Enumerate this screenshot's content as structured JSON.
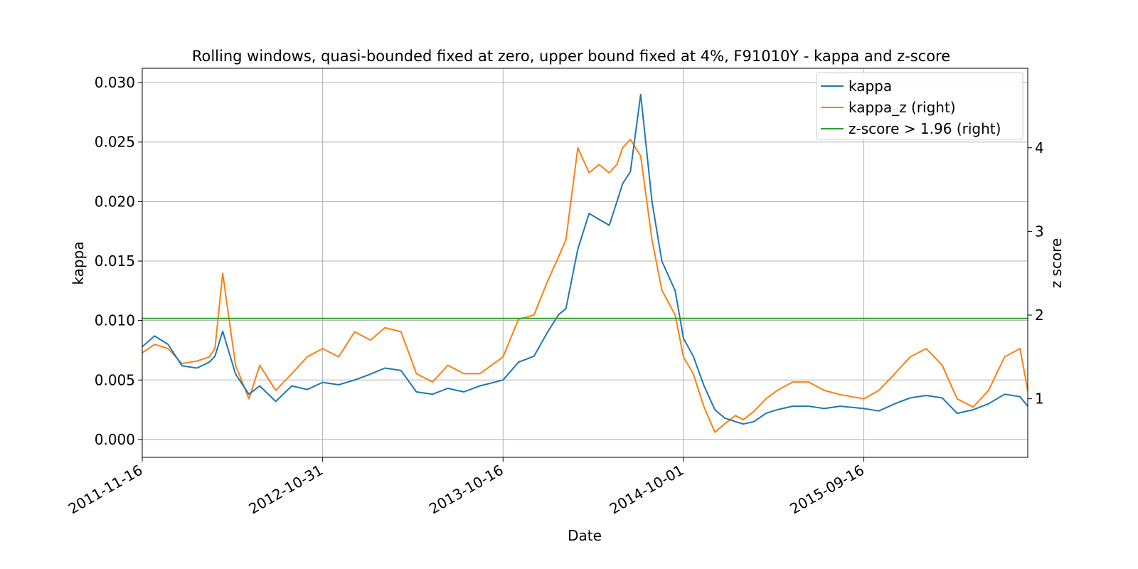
{
  "chart_data": {
    "type": "line",
    "title": "Rolling windows, quasi-bounded fixed at zero, upper bound fixed at 4%, F91010Y - kappa and z-score",
    "xlabel": "Date",
    "ylabel": "kappa",
    "ylabel_right": "z score",
    "x_ticks": [
      "2011-11-16",
      "2012-10-31",
      "2013-10-16",
      "2014-10-01",
      "2015-09-16"
    ],
    "xlim": [
      "2011-11-16",
      "2016-07-30"
    ],
    "y_ticks": [
      "0.000",
      "0.005",
      "0.010",
      "0.015",
      "0.020",
      "0.025",
      "0.030"
    ],
    "ylim": [
      -0.0015,
      0.0312
    ],
    "y2_ticks": [
      "1",
      "2",
      "3",
      "4"
    ],
    "y2lim": [
      0.3,
      4.95
    ],
    "grid": true,
    "legend": {
      "position": "top-right",
      "entries": [
        {
          "label": "kappa",
          "color": "#1f77b4"
        },
        {
          "label": "kappa_z (right)",
          "color": "#ff7f0e"
        },
        {
          "label": "z-score > 1.96 (right)",
          "color": "#2ca02c"
        }
      ]
    },
    "series": [
      {
        "name": "kappa",
        "axis": "left",
        "color": "#1f77b4",
        "x": [
          "2011-11-16",
          "2011-12-10",
          "2012-01-05",
          "2012-02-01",
          "2012-03-01",
          "2012-03-25",
          "2012-04-05",
          "2012-04-20",
          "2012-05-15",
          "2012-06-10",
          "2012-07-01",
          "2012-08-01",
          "2012-09-01",
          "2012-10-01",
          "2012-10-31",
          "2012-12-01",
          "2013-01-01",
          "2013-02-01",
          "2013-03-01",
          "2013-04-01",
          "2013-05-01",
          "2013-06-01",
          "2013-07-01",
          "2013-08-01",
          "2013-09-01",
          "2013-10-16",
          "2013-11-15",
          "2013-12-15",
          "2014-01-10",
          "2014-02-01",
          "2014-02-15",
          "2014-03-10",
          "2014-04-01",
          "2014-04-20",
          "2014-05-10",
          "2014-05-25",
          "2014-06-05",
          "2014-06-20",
          "2014-07-10",
          "2014-08-01",
          "2014-08-20",
          "2014-09-15",
          "2014-10-01",
          "2014-10-20",
          "2014-11-10",
          "2014-12-01",
          "2014-12-20",
          "2015-01-10",
          "2015-01-25",
          "2015-02-15",
          "2015-03-10",
          "2015-04-01",
          "2015-05-01",
          "2015-06-01",
          "2015-07-01",
          "2015-08-01",
          "2015-09-16",
          "2015-10-15",
          "2015-11-15",
          "2015-12-15",
          "2016-01-15",
          "2016-02-15",
          "2016-03-15",
          "2016-04-15",
          "2016-05-15",
          "2016-06-15",
          "2016-07-15",
          "2016-07-30"
        ],
        "values": [
          0.0078,
          0.0087,
          0.008,
          0.0062,
          0.006,
          0.0065,
          0.007,
          0.0091,
          0.0055,
          0.0038,
          0.0045,
          0.0032,
          0.0045,
          0.0042,
          0.0048,
          0.0046,
          0.005,
          0.0055,
          0.006,
          0.0058,
          0.004,
          0.0038,
          0.0043,
          0.004,
          0.0045,
          0.005,
          0.0065,
          0.007,
          0.009,
          0.0105,
          0.011,
          0.016,
          0.019,
          0.0185,
          0.018,
          0.02,
          0.0215,
          0.0225,
          0.029,
          0.02,
          0.015,
          0.0125,
          0.0085,
          0.007,
          0.0045,
          0.0025,
          0.0018,
          0.0015,
          0.0013,
          0.0015,
          0.0022,
          0.0025,
          0.0028,
          0.0028,
          0.0026,
          0.0028,
          0.0026,
          0.0024,
          0.003,
          0.0035,
          0.0037,
          0.0035,
          0.0022,
          0.0025,
          0.003,
          0.0038,
          0.0036,
          0.0028
        ]
      },
      {
        "name": "kappa_z (right)",
        "axis": "right",
        "color": "#ff7f0e",
        "x": [
          "2011-11-16",
          "2011-12-10",
          "2012-01-05",
          "2012-02-01",
          "2012-03-01",
          "2012-03-25",
          "2012-04-05",
          "2012-04-20",
          "2012-05-15",
          "2012-06-10",
          "2012-07-01",
          "2012-08-01",
          "2012-09-01",
          "2012-10-01",
          "2012-10-31",
          "2012-12-01",
          "2013-01-01",
          "2013-02-01",
          "2013-03-01",
          "2013-04-01",
          "2013-05-01",
          "2013-06-01",
          "2013-07-01",
          "2013-08-01",
          "2013-09-01",
          "2013-10-16",
          "2013-11-15",
          "2013-12-15",
          "2014-01-10",
          "2014-02-01",
          "2014-02-15",
          "2014-03-10",
          "2014-04-01",
          "2014-04-20",
          "2014-05-10",
          "2014-05-25",
          "2014-06-05",
          "2014-06-20",
          "2014-07-10",
          "2014-08-01",
          "2014-08-20",
          "2014-09-15",
          "2014-10-01",
          "2014-10-20",
          "2014-11-10",
          "2014-12-01",
          "2014-12-20",
          "2015-01-10",
          "2015-01-25",
          "2015-02-15",
          "2015-03-10",
          "2015-04-01",
          "2015-05-01",
          "2015-06-01",
          "2015-07-01",
          "2015-08-01",
          "2015-09-16",
          "2015-10-15",
          "2015-11-15",
          "2015-12-15",
          "2016-01-15",
          "2016-02-15",
          "2016-03-15",
          "2016-04-15",
          "2016-05-15",
          "2016-06-15",
          "2016-07-15",
          "2016-07-30"
        ],
        "values": [
          1.55,
          1.65,
          1.6,
          1.42,
          1.45,
          1.5,
          1.6,
          2.5,
          1.4,
          1.0,
          1.4,
          1.1,
          1.3,
          1.5,
          1.6,
          1.5,
          1.8,
          1.7,
          1.85,
          1.8,
          1.3,
          1.2,
          1.4,
          1.3,
          1.3,
          1.5,
          1.95,
          2.0,
          2.4,
          2.7,
          2.9,
          4.0,
          3.7,
          3.8,
          3.7,
          3.8,
          4.0,
          4.1,
          3.9,
          2.9,
          2.3,
          2.0,
          1.5,
          1.3,
          0.9,
          0.6,
          0.7,
          0.8,
          0.75,
          0.85,
          1.0,
          1.1,
          1.2,
          1.2,
          1.1,
          1.05,
          1.0,
          1.1,
          1.3,
          1.5,
          1.6,
          1.4,
          1.0,
          0.9,
          1.1,
          1.5,
          1.6,
          1.1
        ]
      },
      {
        "name": "z-score > 1.96 (right)",
        "axis": "right",
        "color": "#2ca02c",
        "x": [
          "2011-11-16",
          "2016-07-30"
        ],
        "values": [
          1.96,
          1.96
        ]
      }
    ]
  }
}
